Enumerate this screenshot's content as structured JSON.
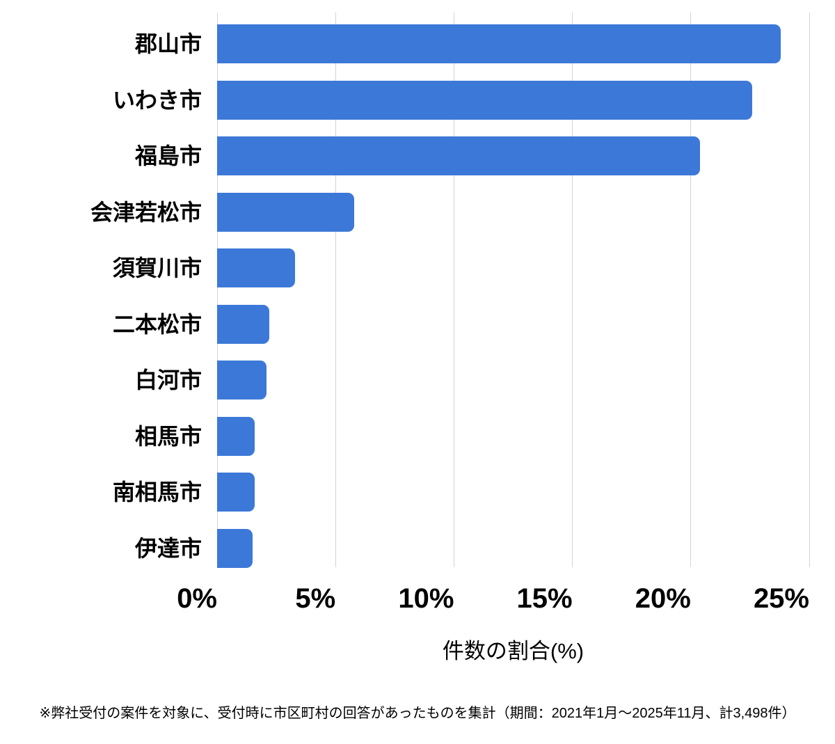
{
  "chart_data": {
    "type": "bar",
    "orientation": "horizontal",
    "title": "",
    "categories": [
      "郡山市",
      "いわき市",
      "福島市",
      "会津若松市",
      "須賀川市",
      "二本松市",
      "白河市",
      "相馬市",
      "南相馬市",
      "伊達市"
    ],
    "values": [
      23.8,
      22.6,
      20.4,
      5.8,
      3.3,
      2.2,
      2.1,
      1.6,
      1.6,
      1.5
    ],
    "xlabel": "件数の割合(%)",
    "ylabel": "",
    "xlim": [
      0,
      25
    ],
    "x_tick_values": [
      0,
      5,
      10,
      15,
      20,
      25
    ],
    "x_tick_labels": [
      "0%",
      "5%",
      "10%",
      "15%",
      "20%",
      "25%"
    ],
    "grid": "vertical-only",
    "legend": "none",
    "bar_color": "#3c78d8",
    "gridline_color": "#d3d3d3",
    "text_color": "#000000",
    "background_color": "#ffffff"
  },
  "footer": {
    "note": "※弊社受付の案件を対象に、受付時に市区町村の回答があったものを集計（期間：2021年1月～2025年11月、計3,498件）"
  }
}
